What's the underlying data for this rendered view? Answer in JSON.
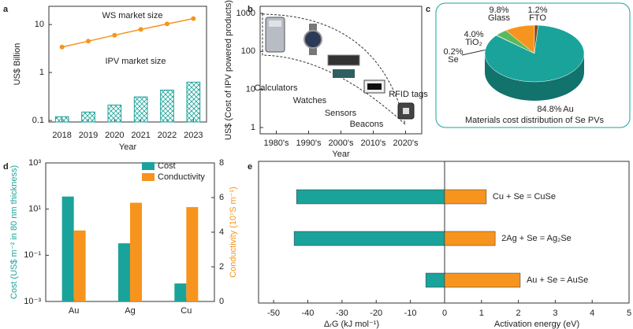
{
  "chart_data": [
    {
      "panel": "a",
      "type": "combo",
      "categories": [
        "2018",
        "2019",
        "2020",
        "2021",
        "2022",
        "2023"
      ],
      "series": [
        {
          "name": "WS market size",
          "type": "line",
          "color": "#f7941d",
          "values": [
            3.4,
            4.5,
            6.0,
            7.9,
            10.3,
            13.3
          ]
        },
        {
          "name": "IPV market size",
          "type": "bar",
          "color": "#1aa39a",
          "values": [
            0.12,
            0.15,
            0.21,
            0.31,
            0.43,
            0.63
          ]
        }
      ],
      "log_y": true,
      "ylim": [
        0.093,
        24
      ],
      "yticks": [
        0.1,
        1,
        10
      ],
      "ylabel": "US$ Billion",
      "xlabel": "Year"
    },
    {
      "panel": "b",
      "type": "illustration",
      "categories": [
        "1980's",
        "1990's",
        "2000's",
        "2010's",
        "2020's"
      ],
      "log_y": true,
      "ylim": [
        1,
        1000
      ],
      "yticks": [
        1,
        10,
        100,
        1000
      ],
      "ylabel": "US$ (Cost of IPV powered products)",
      "xlabel": "Year",
      "annotations": [
        "Calculators",
        "Watches",
        "Sensors",
        "Beacons",
        "RFID tags"
      ]
    },
    {
      "panel": "c",
      "type": "pie",
      "title": "Materials cost distribution of Se PVs",
      "categories": [
        "Se",
        "TiO₂",
        "Glass",
        "FTO",
        "Au"
      ],
      "values": [
        0.2,
        4.0,
        9.8,
        1.2,
        84.8
      ],
      "value_labels": [
        "0.2%",
        "4.0%",
        "9.8%",
        "1.2%",
        "84.8%"
      ],
      "colors": [
        "#2e86c1",
        "#5cb85c",
        "#f7941d",
        "#8b4513",
        "#1aa39a"
      ]
    },
    {
      "panel": "d",
      "type": "bar",
      "categories": [
        "Au",
        "Ag",
        "Cu"
      ],
      "series": [
        {
          "name": "Cost",
          "color": "#1aa39a",
          "values": [
            35,
            0.33,
            0.006
          ]
        },
        {
          "name": "Conductivity",
          "color": "#f7941d",
          "axis": "y2",
          "values": [
            4.1,
            5.7,
            5.45
          ]
        }
      ],
      "log_y": true,
      "ylim": [
        0.001,
        1000
      ],
      "yticks": [
        {
          "value": 0.001,
          "label": "10⁻³"
        },
        {
          "value": 0.1,
          "label": "10⁻¹"
        },
        {
          "value": 10,
          "label": "10¹"
        },
        {
          "value": 1000,
          "label": "10³"
        }
      ],
      "y2lim": [
        0,
        8
      ],
      "y2ticks": [
        0,
        2,
        4,
        6,
        8
      ],
      "ylabel": "Cost (US$ m⁻² in 80 nm thickness)",
      "y2label": "Conductivity (10⁷S m⁻¹)",
      "legend": "top-right"
    },
    {
      "panel": "e",
      "type": "barh",
      "categories": [
        "Cu + Se = CuSe",
        "2Ag + Se = Ag₂Se",
        "Au + Se = AuSe"
      ],
      "series": [
        {
          "color": "#1aa39a",
          "values": [
            -43.3,
            -44,
            -5.5
          ]
        },
        {
          "color": "#f7941d",
          "axis": "x2",
          "values": [
            1.13,
            1.37,
            2.05
          ]
        }
      ],
      "xlim": [
        -54.4,
        0
      ],
      "xticks": [
        -50,
        -40,
        -30,
        -20,
        -10,
        0
      ],
      "x2lim": [
        0,
        5
      ],
      "x2ticks": [
        1,
        2,
        3,
        4,
        5
      ],
      "xlabel": "ΔᵣG (kJ mol⁻¹)",
      "x2label": "Activation energy (eV)"
    }
  ]
}
